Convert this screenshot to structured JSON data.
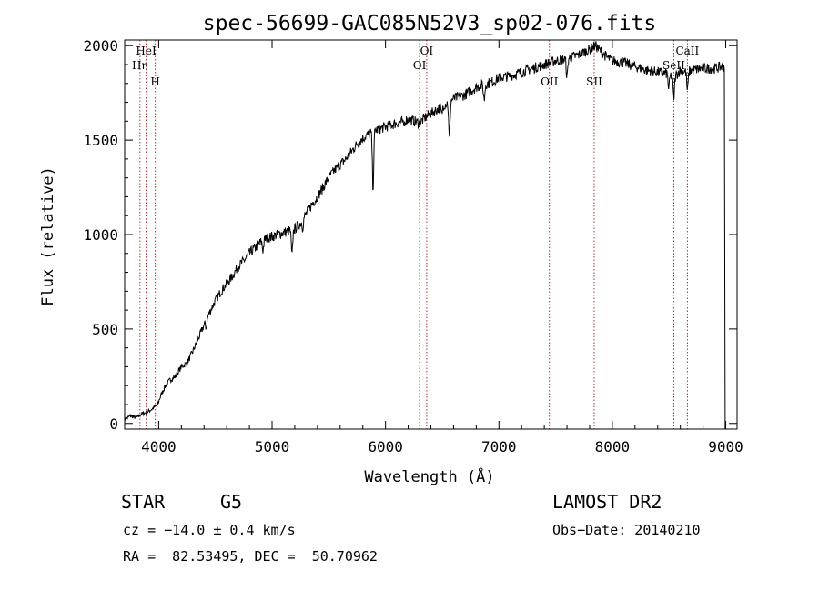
{
  "chart_data": {
    "type": "line",
    "title": "spec-56699-GAC085N52V3_sp02-076.fits",
    "xlabel": "Wavelength (Å)",
    "ylabel": "Flux (relative)",
    "xlim": [
      3700,
      9100
    ],
    "ylim": [
      -30,
      2030
    ],
    "xticks": [
      4000,
      5000,
      6000,
      7000,
      8000,
      9000
    ],
    "yticks": [
      0,
      500,
      1000,
      1500,
      2000
    ],
    "grid": false,
    "series": [
      {
        "x": [
          3700,
          3750,
          3800,
          3850,
          3900,
          3950,
          3990,
          4020,
          4060,
          4100,
          4150,
          4200,
          4250,
          4300,
          4350,
          4400,
          4450,
          4500,
          4550,
          4600,
          4650,
          4700,
          4750,
          4800,
          4850,
          4900,
          4950,
          5000,
          5050,
          5100,
          5150,
          5200,
          5250,
          5300,
          5350,
          5400,
          5450,
          5500,
          5550,
          5600,
          5650,
          5700,
          5750,
          5800,
          5850,
          5900,
          5950,
          6000,
          6050,
          6100,
          6150,
          6200,
          6250,
          6300,
          6350,
          6400,
          6450,
          6500,
          6550,
          6600,
          6650,
          6700,
          6750,
          6800,
          6850,
          6900,
          6950,
          7000,
          7100,
          7200,
          7300,
          7400,
          7500,
          7600,
          7700,
          7800,
          7850,
          7900,
          7950,
          8000,
          8100,
          8200,
          8300,
          8400,
          8500,
          8540,
          8600,
          8660,
          8700,
          8800,
          8900,
          8990
        ],
        "y": [
          20,
          40,
          30,
          50,
          60,
          80,
          100,
          150,
          200,
          230,
          250,
          300,
          320,
          380,
          450,
          520,
          590,
          650,
          700,
          740,
          780,
          830,
          860,
          900,
          930,
          960,
          980,
          990,
          1000,
          1010,
          1020,
          1030,
          1060,
          1110,
          1160,
          1200,
          1250,
          1300,
          1340,
          1370,
          1400,
          1440,
          1480,
          1510,
          1530,
          1550,
          1560,
          1570,
          1580,
          1590,
          1600,
          1610,
          1600,
          1590,
          1620,
          1640,
          1660,
          1680,
          1700,
          1720,
          1730,
          1740,
          1760,
          1780,
          1790,
          1800,
          1810,
          1830,
          1840,
          1860,
          1880,
          1900,
          1920,
          1930,
          1950,
          1980,
          2000,
          1970,
          1940,
          1920,
          1910,
          1890,
          1870,
          1860,
          1850,
          1830,
          1870,
          1860,
          1870,
          1880,
          1880,
          1890
        ]
      }
    ],
    "absorption_features": [
      {
        "x": 4420,
        "depth": 40
      },
      {
        "x": 4920,
        "depth": 50
      },
      {
        "x": 5175,
        "depth": 140
      },
      {
        "x": 5270,
        "depth": 40
      },
      {
        "x": 5890,
        "depth": 300
      },
      {
        "x": 6160,
        "depth": 30
      },
      {
        "x": 6495,
        "depth": 40
      },
      {
        "x": 6563,
        "depth": 200
      },
      {
        "x": 6870,
        "depth": 80
      },
      {
        "x": 7600,
        "depth": 100
      },
      {
        "x": 8498,
        "depth": 80
      },
      {
        "x": 8542,
        "depth": 110
      },
      {
        "x": 8662,
        "depth": 100
      }
    ],
    "spectral_lines": [
      {
        "label": "HeI",
        "x": 3889,
        "row": 0
      },
      {
        "label": "Hη",
        "x": 3835,
        "row": 1
      },
      {
        "label": "H",
        "x": 3970,
        "row": 2
      },
      {
        "label": "OI",
        "x": 6363,
        "row": 0
      },
      {
        "label": "OI",
        "x": 6300,
        "row": 1
      },
      {
        "label": "OII",
        "x": 7445,
        "row": 2
      },
      {
        "label": "SII",
        "x": 7840,
        "row": 2
      },
      {
        "label": "CaII",
        "x": 8662,
        "row": 0
      },
      {
        "label": "SeII",
        "x": 8542,
        "row": 1
      }
    ]
  },
  "footer": {
    "object_type": "STAR",
    "subclass": "G5",
    "survey": "LAMOST DR2",
    "redshift": "cz = −14.0 ± 0.4 km/s",
    "obs_date": "Obs−Date: 20140210",
    "coords": "RA =  82.53495, DEC =  50.70962"
  }
}
